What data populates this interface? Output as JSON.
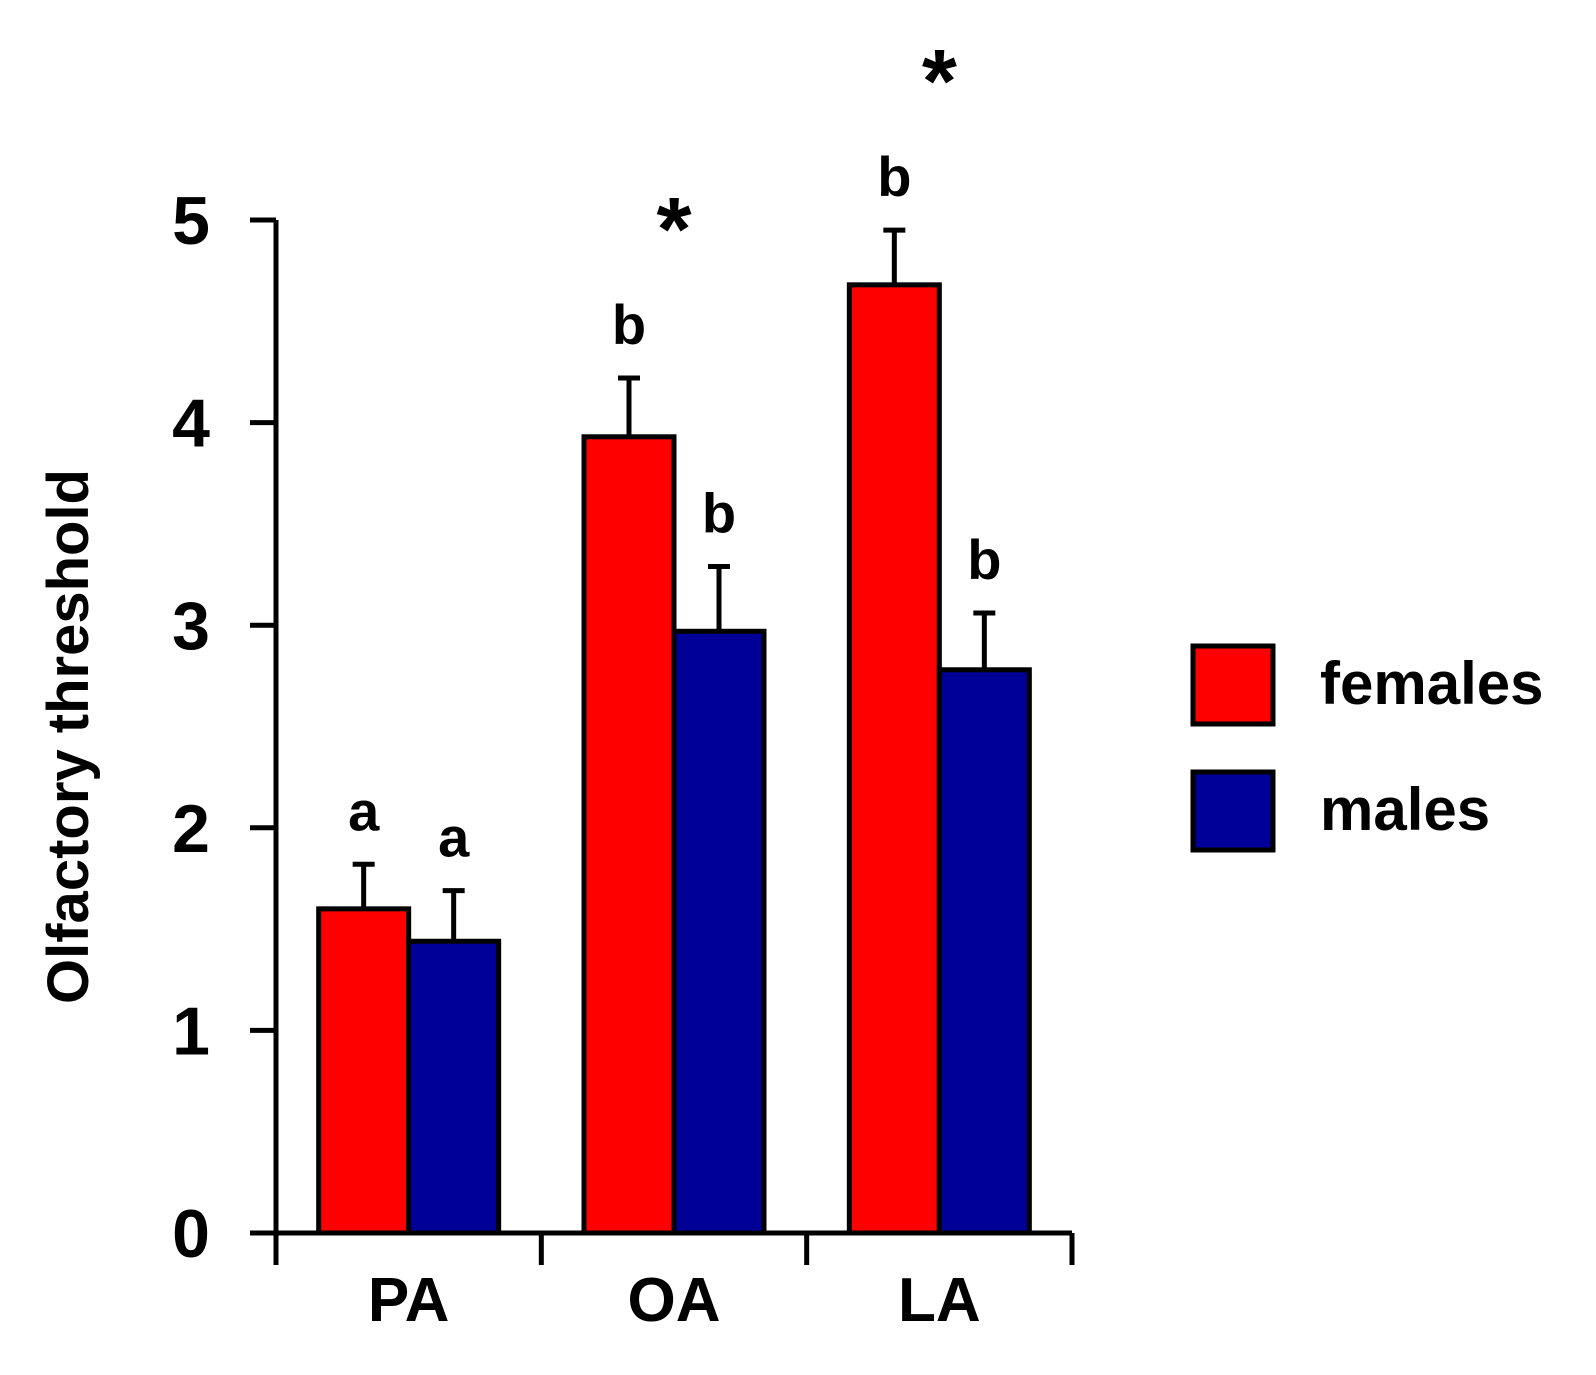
{
  "chart_data": {
    "type": "bar",
    "title": "",
    "xlabel": "",
    "ylabel": "Olfactory threshold",
    "ylim": [
      0,
      5
    ],
    "yticks": [
      "0",
      "1",
      "2",
      "3",
      "4",
      "5"
    ],
    "grid": false,
    "legend_position": "right",
    "categories": [
      "PA",
      "OA",
      "LA"
    ],
    "series": [
      {
        "name": "females",
        "color": "#ff0000",
        "values": [
          1.6,
          3.93,
          4.68
        ],
        "errors": [
          0.22,
          0.29,
          0.27
        ],
        "letters": [
          "a",
          "b",
          "b"
        ]
      },
      {
        "name": "males",
        "color": "#000099",
        "values": [
          1.44,
          2.97,
          2.78
        ],
        "errors": [
          0.25,
          0.32,
          0.28
        ],
        "letters": [
          "a",
          "b",
          "b"
        ]
      }
    ],
    "significance_markers": [
      "",
      "*",
      "*"
    ]
  }
}
